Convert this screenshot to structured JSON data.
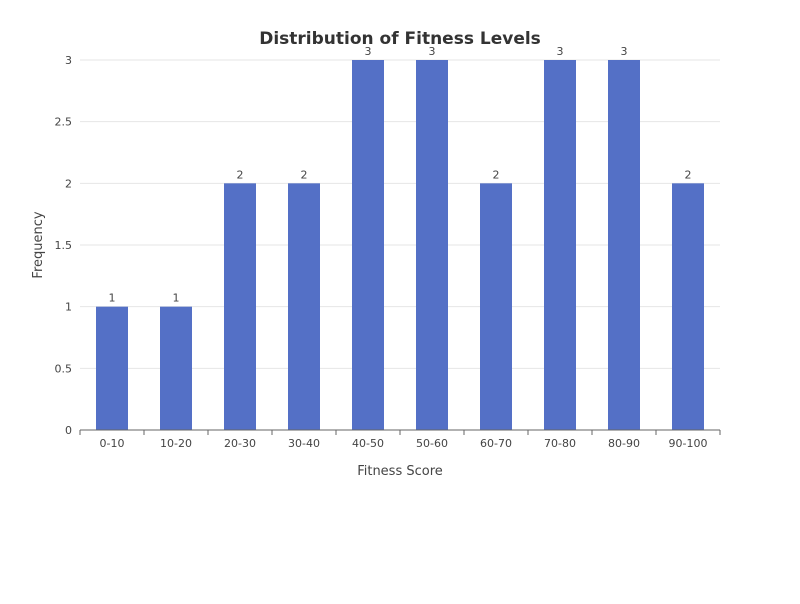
{
  "chart_data": {
    "type": "bar",
    "title": "Distribution of Fitness Levels",
    "xlabel": "Fitness Score",
    "ylabel": "Frequency",
    "categories": [
      "0-10",
      "10-20",
      "20-30",
      "30-40",
      "40-50",
      "50-60",
      "60-70",
      "70-80",
      "80-90",
      "90-100"
    ],
    "values": [
      1,
      1,
      2,
      2,
      3,
      3,
      2,
      3,
      3,
      2
    ],
    "ylim": [
      0,
      3
    ],
    "yticks": [
      "0",
      "0.5",
      "1",
      "1.5",
      "2",
      "2.5",
      "3"
    ],
    "grid": true,
    "legend": "none",
    "bar_color": "#5470c6",
    "show_data_labels": true
  }
}
